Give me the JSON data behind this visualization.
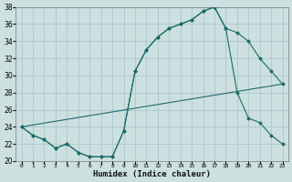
{
  "title": "",
  "xlabel": "Humidex (Indice chaleur)",
  "ylabel": "",
  "xlim": [
    -0.5,
    23.5
  ],
  "ylim": [
    20,
    38
  ],
  "yticks": [
    20,
    22,
    24,
    26,
    28,
    30,
    32,
    34,
    36,
    38
  ],
  "xticks": [
    0,
    1,
    2,
    3,
    4,
    5,
    6,
    7,
    8,
    9,
    10,
    11,
    12,
    13,
    14,
    15,
    16,
    17,
    18,
    19,
    20,
    21,
    22,
    23
  ],
  "bg_color": "#cde0e0",
  "grid_color": "#a8c8c8",
  "line_color": "#1a6b6b",
  "line1_x": [
    0,
    1,
    2,
    3,
    4,
    5,
    6,
    7,
    8,
    9,
    10,
    11,
    12,
    13,
    14,
    15,
    16,
    17,
    18,
    19,
    20,
    21,
    22,
    23
  ],
  "line1_y": [
    24.0,
    23.0,
    22.5,
    21.5,
    22.0,
    21.0,
    20.5,
    20.5,
    20.5,
    23.5,
    30.5,
    33.0,
    34.5,
    35.5,
    36.0,
    36.5,
    37.5,
    38.0,
    35.5,
    35.0,
    34.0,
    32.0,
    30.5,
    29.0
  ],
  "line2_x": [
    0,
    1,
    2,
    3,
    4,
    5,
    6,
    7,
    8,
    9,
    10,
    11,
    12,
    13,
    14,
    15,
    16,
    17,
    18,
    19,
    20,
    21,
    22,
    23
  ],
  "line2_y": [
    24.0,
    23.0,
    22.5,
    21.5,
    22.0,
    21.0,
    20.5,
    20.5,
    20.5,
    23.5,
    30.5,
    33.0,
    34.5,
    35.5,
    36.0,
    36.5,
    37.5,
    38.0,
    35.5,
    28.0,
    25.0,
    24.5,
    23.0,
    22.0
  ],
  "line3_x": [
    0,
    23
  ],
  "line3_y": [
    24.0,
    29.0
  ]
}
